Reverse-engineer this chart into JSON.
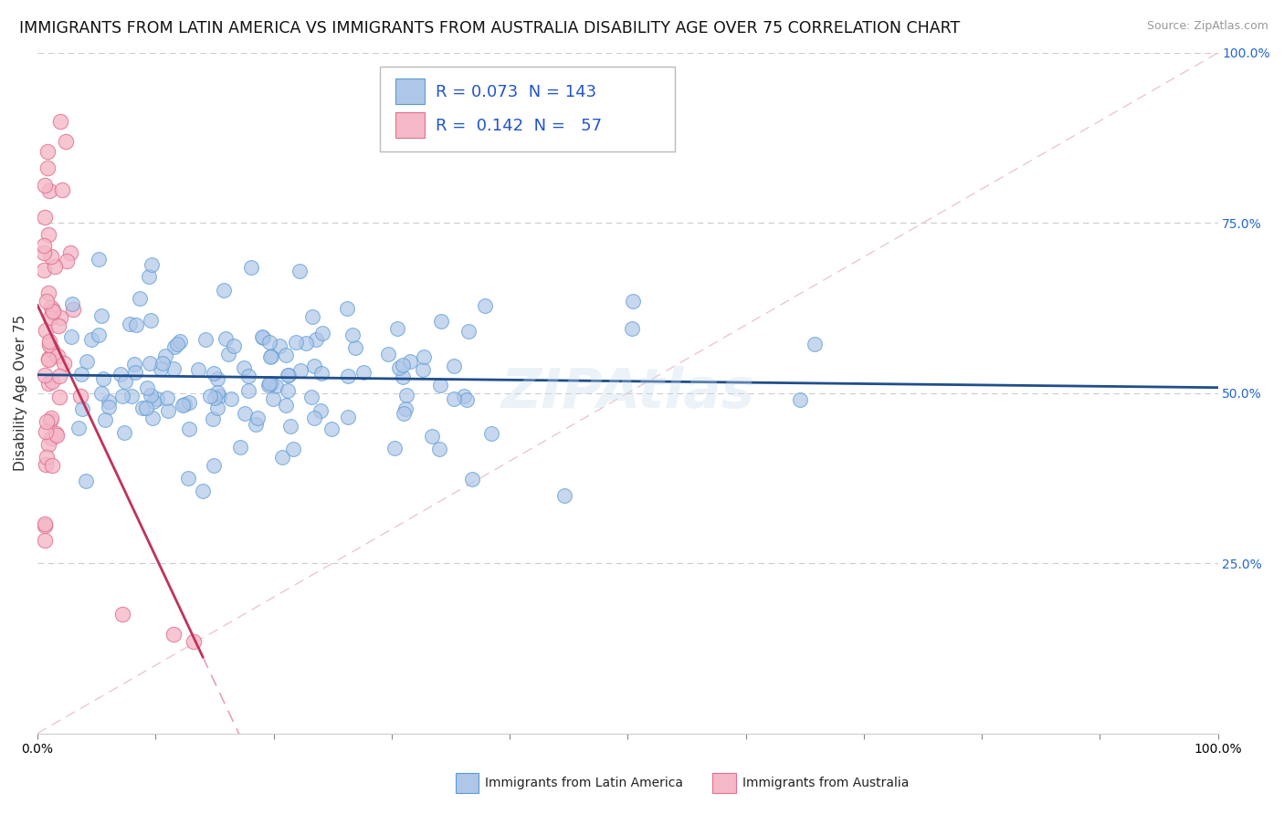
{
  "title": "IMMIGRANTS FROM LATIN AMERICA VS IMMIGRANTS FROM AUSTRALIA DISABILITY AGE OVER 75 CORRELATION CHART",
  "source": "Source: ZipAtlas.com",
  "ylabel": "Disability Age Over 75",
  "y_tick_labels": [
    "25.0%",
    "50.0%",
    "75.0%",
    "100.0%"
  ],
  "y_tick_values": [
    0.25,
    0.5,
    0.75,
    1.0
  ],
  "x_bottom_labels": [
    "Immigrants from Latin America",
    "Immigrants from Australia"
  ],
  "series": [
    {
      "name": "Immigrants from Latin America",
      "R": 0.073,
      "N": 143,
      "marker_color": "#aec6e8",
      "marker_edge": "#5b9bd5",
      "line_color": "#1f4e8c"
    },
    {
      "name": "Immigrants from Australia",
      "R": 0.142,
      "N": 57,
      "marker_color": "#f4b8c8",
      "marker_edge": "#e07090",
      "line_color": "#c0325a",
      "dash_color": "#e8a0b0"
    }
  ],
  "background_color": "#ffffff",
  "grid_color": "#cccccc",
  "title_fontsize": 12.5,
  "axis_fontsize": 11,
  "legend_fontsize": 13,
  "watermark": "ZIPAtlas",
  "seed": 42,
  "x_ticks": [
    0.0,
    0.1,
    0.2,
    0.3,
    0.4,
    0.5,
    0.6,
    0.7,
    0.8,
    0.9,
    1.0
  ]
}
